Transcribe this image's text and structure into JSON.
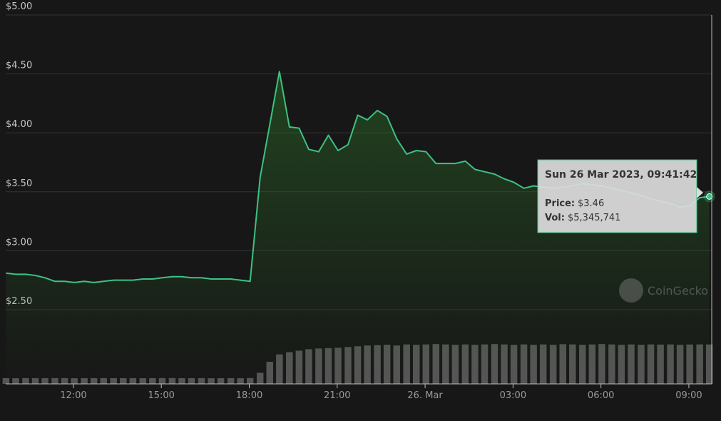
{
  "chart_data": {
    "type": "line",
    "x": [
      9.7,
      10.03,
      10.37,
      10.7,
      11.03,
      11.37,
      11.7,
      12.03,
      12.37,
      12.7,
      13.03,
      13.37,
      13.7,
      14.03,
      14.37,
      14.7,
      15.03,
      15.37,
      15.7,
      16.03,
      16.37,
      16.7,
      17.03,
      17.37,
      17.7,
      18.03,
      18.37,
      18.7,
      19.03,
      19.37,
      19.7,
      20.03,
      20.37,
      20.7,
      21.03,
      21.37,
      21.7,
      22.03,
      22.37,
      22.7,
      23.03,
      23.37,
      23.7,
      24.03,
      24.37,
      24.7,
      25.03,
      25.37,
      25.7,
      26.03,
      26.37,
      26.7,
      27.03,
      27.37,
      27.7,
      28.03,
      28.37,
      28.7,
      29.03,
      29.37,
      29.7,
      30.03,
      30.37,
      30.7,
      31.03,
      31.37,
      31.7,
      32.03,
      32.37,
      32.7,
      33.03,
      33.37,
      33.7
    ],
    "xlim": [
      9.69,
      33.78
    ],
    "xticks": [
      {
        "value": 12,
        "label": "12:00"
      },
      {
        "value": 15,
        "label": "15:00"
      },
      {
        "value": 18,
        "label": "18:00"
      },
      {
        "value": 21,
        "label": "21:00"
      },
      {
        "value": 24,
        "label": "26. Mar"
      },
      {
        "value": 27,
        "label": "03:00"
      },
      {
        "value": 30,
        "label": "06:00"
      },
      {
        "value": 33,
        "label": "09:00"
      }
    ],
    "ylim": [
      1.87,
      5
    ],
    "yticks": [
      {
        "value": 2.5,
        "label": "$2.50"
      },
      {
        "value": 3,
        "label": "$3.00"
      },
      {
        "value": 3.5,
        "label": "$3.50"
      },
      {
        "value": 4,
        "label": "$4.00"
      },
      {
        "value": 4.5,
        "label": "$4.50"
      },
      {
        "value": 5,
        "label": "$5.00"
      }
    ],
    "y2lim": [
      0,
      50000000
    ],
    "grid": true,
    "series": [
      {
        "color": "#3dc184",
        "values": [
          2.81,
          2.8,
          2.8,
          2.79,
          2.77,
          2.74,
          2.74,
          2.73,
          2.74,
          2.73,
          2.74,
          2.75,
          2.75,
          2.75,
          2.76,
          2.76,
          2.77,
          2.78,
          2.78,
          2.77,
          2.77,
          2.76,
          2.76,
          2.76,
          2.75,
          2.74,
          3.62,
          4.07,
          4.52,
          4.05,
          4.04,
          3.86,
          3.84,
          3.98,
          3.85,
          3.9,
          4.15,
          4.11,
          4.19,
          4.14,
          3.95,
          3.82,
          3.85,
          3.84,
          3.74,
          3.74,
          3.74,
          3.76,
          3.69,
          3.67,
          3.65,
          3.61,
          3.58,
          3.53,
          3.55,
          3.54,
          3.53,
          3.54,
          3.55,
          3.57,
          3.56,
          3.55,
          3.53,
          3.51,
          3.49,
          3.47,
          3.44,
          3.42,
          3.4,
          3.37,
          3.38,
          3.45,
          3.46
        ]
      },
      {
        "color": "#555555",
        "axis": "y2",
        "kind": "bar",
        "values": [
          780000,
          770000,
          790000,
          780000,
          775000,
          785000,
          780000,
          770000,
          775000,
          780000,
          785000,
          780000,
          775000,
          780000,
          770000,
          780000,
          785000,
          790000,
          780000,
          775000,
          780000,
          770000,
          775000,
          780000,
          770000,
          800000,
          1500000,
          3000000,
          4000000,
          4300000,
          4500000,
          4700000,
          4800000,
          4850000,
          4900000,
          5000000,
          5100000,
          5200000,
          5250000,
          5300000,
          5200000,
          5350000,
          5300000,
          5350000,
          5400000,
          5350000,
          5300000,
          5350000,
          5300000,
          5350000,
          5400000,
          5350000,
          5300000,
          5350000,
          5300000,
          5350000,
          5300000,
          5380000,
          5350000,
          5300000,
          5350000,
          5400000,
          5350000,
          5300000,
          5350000,
          5300000,
          5350000,
          5330000,
          5350000,
          5300000,
          5340000,
          5350000,
          5345741
        ]
      }
    ],
    "tooltip": {
      "title": "Sun 26 Mar 2023, 09:41:42",
      "rows": [
        {
          "label": "Price:",
          "value": "$3.46"
        },
        {
          "label": "Vol:",
          "value": "$5,345,741"
        }
      ]
    },
    "watermark": "CoinGecko"
  }
}
